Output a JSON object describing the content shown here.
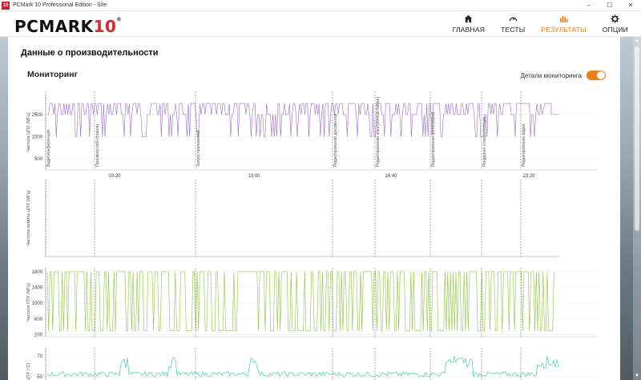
{
  "window": {
    "title": "PCMark 10 Professional Edition - Site",
    "logo_text": "10",
    "controls": {
      "minimize": "–",
      "maximize": "☐",
      "close": "✕"
    }
  },
  "brand": {
    "main": "PCMARK",
    "num": "10",
    "reg": "®"
  },
  "nav": {
    "home": {
      "label": "ГЛАВНАЯ",
      "icon": "home-icon"
    },
    "tests": {
      "label": "ТЕСТЫ",
      "icon": "gauge-icon"
    },
    "results": {
      "label": "РЕЗУЛЬТАТЫ",
      "icon": "bar-chart-icon",
      "active": true
    },
    "options": {
      "label": "ОПЦИИ",
      "icon": "gear-icon"
    }
  },
  "page": {
    "section_title": "Данные о производительности",
    "monitor_title": "Мониторинг",
    "toggle_label": "Детали мониторинга",
    "toggle_on": true
  },
  "colors": {
    "accent": "#e8801f",
    "cpu": "#9b6bd0",
    "gpu": "#8cc63e",
    "temp": "#3ccfb0",
    "limit": "#d9c9a0"
  },
  "chart_data": [
    {
      "type": "line",
      "name": "cpu-clock",
      "ylabel": "Частота ЦПУ (МГц)",
      "yticks": [
        500,
        1500,
        2500
      ],
      "ylim": [
        0,
        3400
      ],
      "xticks": [
        "03:20",
        "10:00",
        "16:40",
        "23:20"
      ],
      "levels": [
        3000,
        2500,
        1500
      ],
      "events": [
        "Видеоконференция",
        "Просмотр веб-страниц",
        "Запуск приложений",
        "Редактирование документов",
        "Редактирование электронных таблиц",
        "Редактирование фотографий",
        "Рендеринг и визуализация",
        "Редактирование видео"
      ]
    },
    {
      "type": "line",
      "name": "cpu-limit",
      "ylabel": "Частота лимита ЦПУ (МГц)"
    },
    {
      "type": "line",
      "name": "gpu-clock",
      "ylabel": "Частота ГПУ (МГц)",
      "yticks": [
        200,
        600,
        1000,
        1400,
        1800
      ],
      "ylim": [
        150,
        1900
      ],
      "levels": [
        1800,
        300
      ]
    },
    {
      "type": "line",
      "name": "temp",
      "ylabel": "ЦПУ (°C)",
      "yticks": [
        50,
        70
      ]
    }
  ]
}
